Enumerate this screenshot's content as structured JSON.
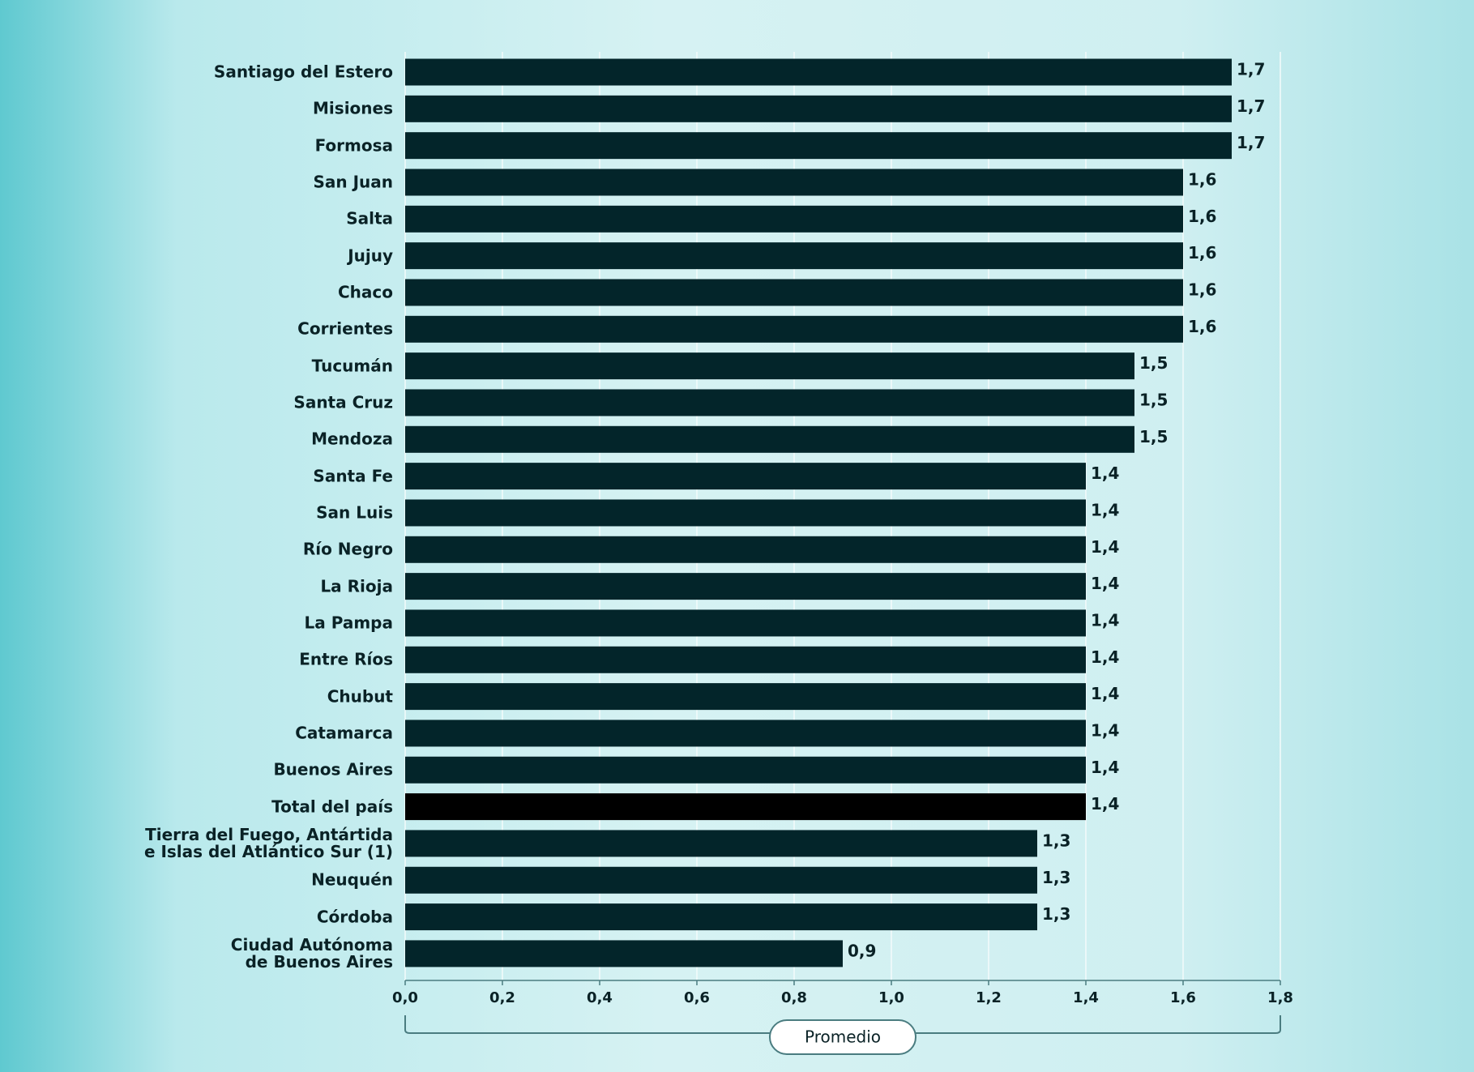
{
  "chart_data": {
    "type": "hbar",
    "categories": [
      "Santiago del Estero",
      "Misiones",
      "Formosa",
      "San Juan",
      "Salta",
      "Jujuy",
      "Chaco",
      "Corrientes",
      "Tucumán",
      "Santa Cruz",
      "Mendoza",
      "Santa Fe",
      "San Luis",
      "Río Negro",
      "La Rioja",
      "La Pampa",
      "Entre Ríos",
      "Chubut",
      "Catamarca",
      "Buenos Aires",
      "Total del país",
      "Tierra del Fuego, Antártida\ne Islas del Atlántico Sur (1)",
      "Neuquén",
      "Córdoba",
      "Ciudad Autónoma\nde Buenos Aires"
    ],
    "values": [
      1.7,
      1.7,
      1.7,
      1.6,
      1.6,
      1.6,
      1.6,
      1.6,
      1.5,
      1.5,
      1.5,
      1.4,
      1.4,
      1.4,
      1.4,
      1.4,
      1.4,
      1.4,
      1.4,
      1.4,
      1.4,
      1.3,
      1.3,
      1.3,
      0.9
    ],
    "value_labels": [
      "1,7",
      "1,7",
      "1,7",
      "1,6",
      "1,6",
      "1,6",
      "1,6",
      "1,6",
      "1,5",
      "1,5",
      "1,5",
      "1,4",
      "1,4",
      "1,4",
      "1,4",
      "1,4",
      "1,4",
      "1,4",
      "1,4",
      "1,4",
      "1,4",
      "1,3",
      "1,3",
      "1,3",
      "0,9"
    ],
    "color": "#03252a",
    "colors": [
      "#03252a",
      "#03252a",
      "#03252a",
      "#03252a",
      "#03252a",
      "#03252a",
      "#03252a",
      "#03252a",
      "#03252a",
      "#03252a",
      "#03252a",
      "#03252a",
      "#03252a",
      "#03252a",
      "#03252a",
      "#03252a",
      "#03252a",
      "#03252a",
      "#03252a",
      "#03252a",
      "#000000",
      "#03252a",
      "#03252a",
      "#03252a",
      "#03252a"
    ],
    "xlim": [
      0,
      1.8
    ],
    "xticks": [
      {
        "value": 0,
        "label": "0,0"
      },
      {
        "value": 0.2,
        "label": "0,2"
      },
      {
        "value": 0.4,
        "label": "0,4"
      },
      {
        "value": 0.6,
        "label": "0,6"
      },
      {
        "value": 0.8,
        "label": "0,8"
      },
      {
        "value": 1.0,
        "label": "1,0"
      },
      {
        "value": 1.2,
        "label": "1,2"
      },
      {
        "value": 1.4,
        "label": "1,4"
      },
      {
        "value": 1.6,
        "label": "1,6"
      },
      {
        "value": 1.8,
        "label": "1,8"
      }
    ],
    "x_label": "Promedio",
    "grid": true
  }
}
